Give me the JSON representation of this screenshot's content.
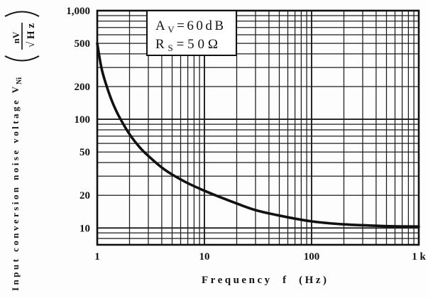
{
  "chart_data": {
    "type": "line",
    "xscale": "log",
    "yscale": "log",
    "xlim": [
      1,
      1000
    ],
    "ylim": [
      7,
      1000
    ],
    "grid": true,
    "xlabel": "Frequency  f  (Hz)",
    "ylabel": {
      "text": "Input conversion noise voltage V",
      "subscript": "Ni",
      "unit_numerator": "nV",
      "unit_denominator": "√Hz"
    },
    "x_ticks": [
      {
        "value": 1,
        "label": "1"
      },
      {
        "value": 10,
        "label": "10"
      },
      {
        "value": 100,
        "label": "100"
      },
      {
        "value": 1000,
        "label": "1 k"
      }
    ],
    "y_ticks": [
      {
        "value": 1000,
        "label": "1,000"
      },
      {
        "value": 500,
        "label": "500"
      },
      {
        "value": 200,
        "label": "200"
      },
      {
        "value": 100,
        "label": "100"
      },
      {
        "value": 50,
        "label": "50"
      },
      {
        "value": 20,
        "label": "20"
      },
      {
        "value": 10,
        "label": "10"
      }
    ],
    "series": [
      {
        "x": [
          1,
          1.1,
          1.25,
          1.4,
          1.6,
          2,
          2.5,
          3,
          4,
          5,
          7,
          10,
          15,
          20,
          30,
          50,
          100,
          200,
          500,
          1000
        ],
        "y": [
          500,
          290,
          190,
          140,
          106,
          73,
          55,
          46,
          36,
          31,
          25.8,
          22,
          18.7,
          16.8,
          14.6,
          13,
          11.5,
          10.8,
          10.4,
          10.3
        ]
      }
    ],
    "annotation": {
      "position": "top-left",
      "lines": [
        {
          "symbol": "A",
          "subscript": "V",
          "value": "=60dB"
        },
        {
          "symbol": "R",
          "subscript": "S",
          "value": "=50Ω"
        }
      ]
    },
    "colors": {
      "line": "#111111",
      "grid": "#1c1c1c",
      "frame": "#111111",
      "background": "#fdfdfd"
    }
  }
}
